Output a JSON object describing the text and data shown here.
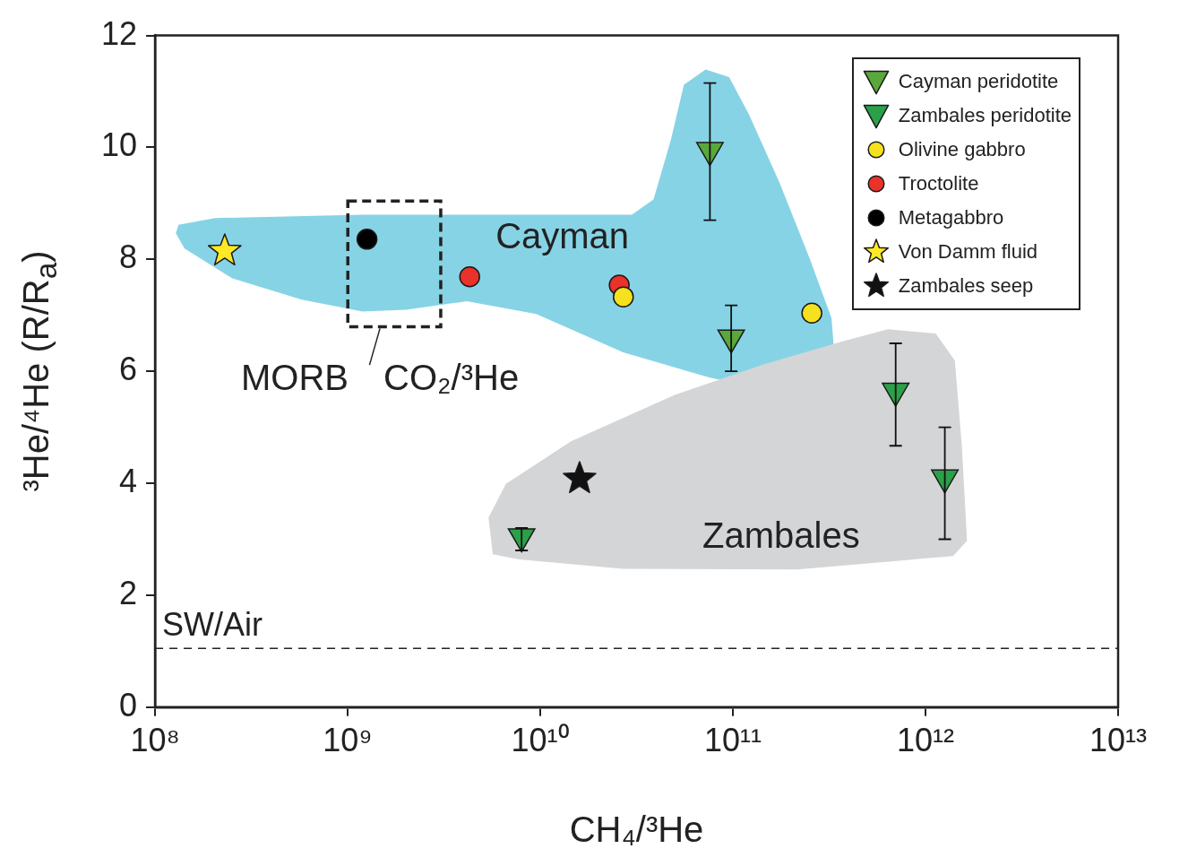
{
  "chart_data": {
    "type": "scatter",
    "xlabel": "CH₄/³He",
    "ylabel": "³He/⁴He (R/R$_{a}$)",
    "log": "x",
    "grid": false,
    "legend": "top right",
    "xlim": [
      100000000.0,
      10000000000000.0
    ],
    "xticks": [
      {
        "value": 100000000.0,
        "label": "10⁸"
      },
      {
        "value": 1000000000.0,
        "label": "10⁹"
      },
      {
        "value": 10000000000.0,
        "label": "10¹⁰"
      },
      {
        "value": 100000000000.0,
        "label": "10¹¹"
      },
      {
        "value": 1000000000000.0,
        "label": "10¹²"
      },
      {
        "value": 10000000000000.0,
        "label": "10¹³"
      }
    ],
    "ylim": [
      0,
      12
    ],
    "yticks": [
      0,
      2,
      4,
      6,
      8,
      10,
      12
    ],
    "ref_lines": [
      {
        "axis": "y",
        "value": 1.05,
        "label": "SW/Air",
        "line_style": "dashed",
        "color": "#222222"
      }
    ],
    "annotations": [
      "Cayman",
      "Zambales",
      "MORB CO₂/³He"
    ],
    "series": [
      {
        "name": "Cayman peridotite",
        "color": "#5aa83c",
        "marker": "triangle",
        "x": [
          76000000000.0,
          98000000000.0
        ],
        "values": [
          9.95,
          6.6
        ],
        "errors": [
          [
            8.7,
            11.15
          ],
          [
            6.0,
            7.18
          ]
        ]
      },
      {
        "name": "Zambales peridotite",
        "color": "#2ca048",
        "marker": "triangle",
        "x": [
          700000000000.0,
          1260000000000.0,
          8000000000.0
        ],
        "values": [
          5.65,
          4.1,
          3.05
        ],
        "errors": [
          [
            4.67,
            6.5
          ],
          [
            3.0,
            5.0
          ],
          [
            2.8,
            3.2
          ]
        ]
      },
      {
        "name": "Olivine gabbro",
        "color": "#f5e11e",
        "marker": "circle",
        "x": [
          27000000000.0,
          257000000000.0
        ],
        "values": [
          7.33,
          7.04
        ]
      },
      {
        "name": "Troctolite",
        "color": "#e8322a",
        "marker": "circle",
        "x": [
          4300000000.0,
          25700000000.0
        ],
        "values": [
          7.69,
          7.54
        ]
      },
      {
        "name": "Metagabbro",
        "color": "#000000",
        "marker": "circle",
        "x": [
          1260000000.0
        ],
        "values": [
          8.36
        ]
      },
      {
        "name": "Von Damm fluid",
        "color": "#ffe825",
        "marker": "star",
        "x": [
          230000000.0
        ],
        "values": [
          8.15
        ]
      },
      {
        "name": "Zambales seep",
        "color": "#111111",
        "marker": "star",
        "x": [
          16000000000.0
        ],
        "values": [
          4.08
        ]
      }
    ]
  }
}
